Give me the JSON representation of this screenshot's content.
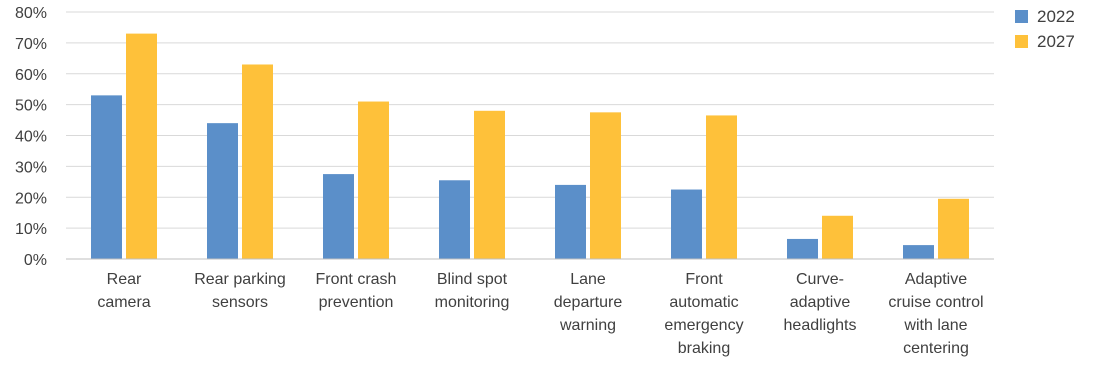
{
  "chart_data": {
    "type": "bar",
    "title": "",
    "xlabel": "",
    "ylabel": "",
    "ylim": [
      0,
      80
    ],
    "y_ticks": [
      "0%",
      "10%",
      "20%",
      "30%",
      "40%",
      "50%",
      "60%",
      "70%",
      "80%"
    ],
    "grid": true,
    "legend": "right",
    "categories": [
      [
        "Rear",
        "camera"
      ],
      [
        "Rear parking",
        "sensors"
      ],
      [
        "Front crash",
        "prevention"
      ],
      [
        "Blind spot",
        "monitoring"
      ],
      [
        "Lane",
        "departure",
        "warning"
      ],
      [
        "Front",
        "automatic",
        "emergency",
        "braking"
      ],
      [
        "Curve-",
        "adaptive",
        "headlights"
      ],
      [
        "Adaptive",
        "cruise control",
        "with lane",
        "centering"
      ]
    ],
    "series": [
      {
        "name": "2022",
        "color": "#5b8fc9",
        "values": [
          53,
          44,
          27.5,
          25.5,
          24,
          22.5,
          6.5,
          4.5
        ]
      },
      {
        "name": "2027",
        "color": "#fec13a",
        "values": [
          73,
          63,
          51,
          48,
          47.5,
          46.5,
          14,
          19.5
        ]
      }
    ],
    "colors": {
      "grid": "#d9d9d9",
      "axis": "#bfbfbf",
      "text": "#404040"
    }
  }
}
